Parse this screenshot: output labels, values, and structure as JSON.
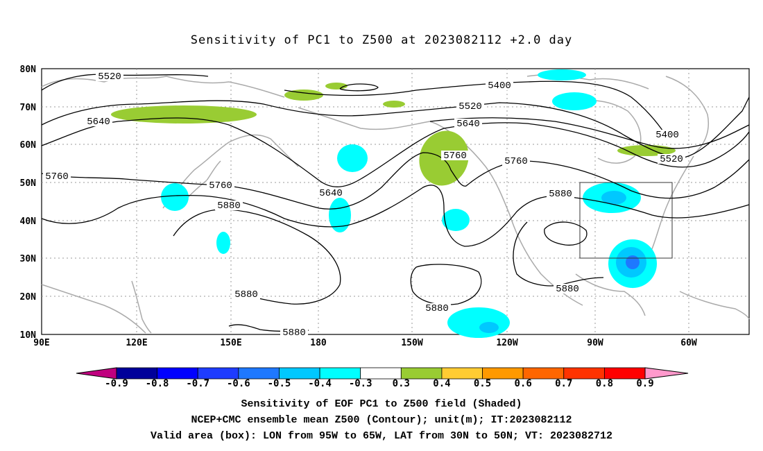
{
  "title": "Sensitivity of PC1 to Z500 at 2023082112 +2.0 day",
  "lat_ticks": [
    "80N",
    "70N",
    "60N",
    "50N",
    "40N",
    "30N",
    "20N",
    "10N"
  ],
  "lon_ticks": [
    "90E",
    "120E",
    "150E",
    "180",
    "150W",
    "120W",
    "90W",
    "60W"
  ],
  "contour_labels": [
    {
      "text": "5520"
    },
    {
      "text": "5400"
    },
    {
      "text": "5520"
    },
    {
      "text": "5640"
    },
    {
      "text": "5400"
    },
    {
      "text": "5640"
    },
    {
      "text": "5760"
    },
    {
      "text": "5520"
    },
    {
      "text": "5760"
    },
    {
      "text": "5760"
    },
    {
      "text": "5760"
    },
    {
      "text": "5640"
    },
    {
      "text": "5880"
    },
    {
      "text": "5880"
    },
    {
      "text": "5880"
    },
    {
      "text": "5880"
    },
    {
      "text": "5880"
    },
    {
      "text": "5880"
    }
  ],
  "colorbar": {
    "labels": [
      "-0.9",
      "-0.8",
      "-0.7",
      "-0.6",
      "-0.5",
      "-0.4",
      "-0.3",
      "0.3",
      "0.4",
      "0.5",
      "0.6",
      "0.7",
      "0.8",
      "0.9"
    ],
    "colors": [
      "#00009a",
      "#0000ff",
      "#1e3cff",
      "#1e78ff",
      "#00c8ff",
      "#00ffff",
      "#ffffff",
      "#99cc33",
      "#ffcc33",
      "#ff9900",
      "#ff6600",
      "#ff3300",
      "#ff0000"
    ],
    "low_end_color": "#c0007f",
    "high_end_color": "#ff99cc"
  },
  "valid_box": {
    "lon_min": "95W",
    "lon_max": "65W",
    "lat_min": "30N",
    "lat_max": "50N"
  },
  "footer": [
    "Sensitivity of EOF PC1 to Z500 field (Shaded)",
    "NCEP+CMC ensemble mean Z500 (Contour); unit(m); IT:2023082112",
    "Valid area (box): LON from 95W to 65W, LAT from 30N to 50N; VT: 2023082712"
  ]
}
